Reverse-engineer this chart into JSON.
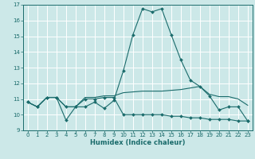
{
  "xlabel": "Humidex (Indice chaleur)",
  "bg_color": "#cce8e8",
  "grid_color": "#ffffff",
  "line_color": "#1a6b6b",
  "xlim": [
    -0.5,
    23.5
  ],
  "ylim": [
    9,
    17
  ],
  "yticks": [
    9,
    10,
    11,
    12,
    13,
    14,
    15,
    16,
    17
  ],
  "xticks": [
    0,
    1,
    2,
    3,
    4,
    5,
    6,
    7,
    8,
    9,
    10,
    11,
    12,
    13,
    14,
    15,
    16,
    17,
    18,
    19,
    20,
    21,
    22,
    23
  ],
  "line1_x": [
    0,
    1,
    2,
    3,
    4,
    5,
    6,
    7,
    8,
    9,
    10,
    11,
    12,
    13,
    14,
    15,
    16,
    17,
    18,
    19,
    20,
    21,
    22,
    23
  ],
  "line1_y": [
    10.8,
    10.5,
    11.1,
    11.1,
    9.65,
    10.5,
    10.5,
    10.8,
    10.4,
    10.9,
    12.8,
    15.1,
    16.75,
    16.55,
    16.75,
    15.1,
    13.5,
    12.2,
    11.8,
    11.2,
    10.3,
    10.5,
    10.5,
    9.6
  ],
  "line2_x": [
    0,
    1,
    2,
    3,
    4,
    5,
    6,
    7,
    8,
    9,
    10,
    11,
    12,
    13,
    14,
    15,
    16,
    17,
    18,
    19,
    20,
    21,
    22,
    23
  ],
  "line2_y": [
    10.8,
    10.5,
    11.1,
    11.1,
    10.5,
    10.5,
    11.1,
    11.1,
    11.2,
    11.2,
    11.4,
    11.45,
    11.5,
    11.5,
    11.5,
    11.55,
    11.6,
    11.7,
    11.8,
    11.3,
    11.15,
    11.15,
    11.0,
    10.6
  ],
  "line3_x": [
    0,
    1,
    2,
    3,
    4,
    5,
    6,
    7,
    8,
    9,
    10,
    11,
    12,
    13,
    14,
    15,
    16,
    17,
    18,
    19,
    20,
    21,
    22,
    23
  ],
  "line3_y": [
    10.8,
    10.5,
    11.1,
    11.1,
    10.5,
    10.5,
    11.0,
    11.0,
    11.1,
    11.1,
    10.0,
    10.0,
    10.0,
    10.0,
    10.0,
    9.9,
    9.9,
    9.8,
    9.8,
    9.7,
    9.7,
    9.7,
    9.6,
    9.6
  ]
}
